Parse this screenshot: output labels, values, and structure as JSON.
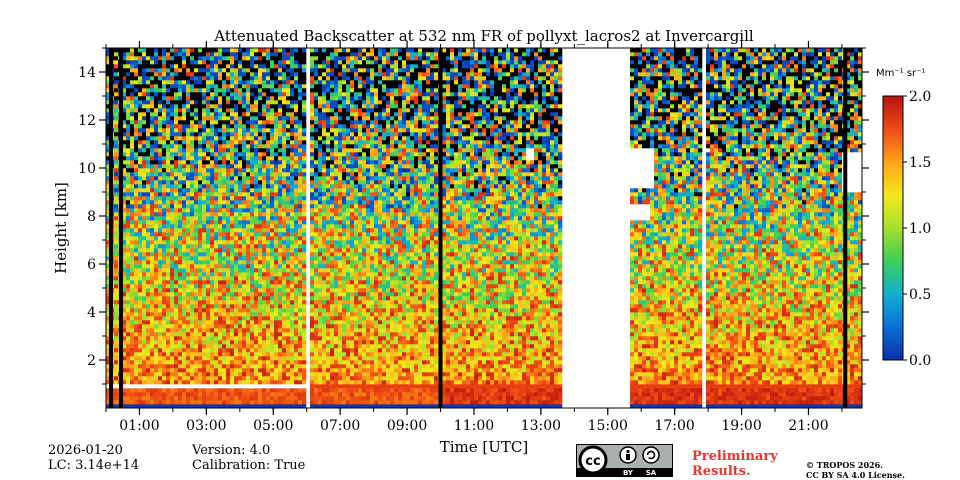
{
  "chart_data": {
    "type": "heatmap",
    "title": "Attenuated Backscatter at 532 nm FR of pollyxt_lacros2 at Invercargill",
    "xlabel": "Time [UTC]",
    "ylabel": "Height [km]",
    "x_range_hours": [
      0.0,
      22.6
    ],
    "y_range_km": [
      0.0,
      15.0
    ],
    "x_ticks": [
      {
        "hour": 1,
        "label": "01:00"
      },
      {
        "hour": 3,
        "label": "03:00"
      },
      {
        "hour": 5,
        "label": "05:00"
      },
      {
        "hour": 7,
        "label": "07:00"
      },
      {
        "hour": 9,
        "label": "09:00"
      },
      {
        "hour": 11,
        "label": "11:00"
      },
      {
        "hour": 13,
        "label": "13:00"
      },
      {
        "hour": 15,
        "label": "15:00"
      },
      {
        "hour": 17,
        "label": "17:00"
      },
      {
        "hour": 19,
        "label": "19:00"
      },
      {
        "hour": 21,
        "label": "21:00"
      }
    ],
    "y_ticks": [
      {
        "value": 2,
        "label": "2"
      },
      {
        "value": 4,
        "label": "4"
      },
      {
        "value": 6,
        "label": "6"
      },
      {
        "value": 8,
        "label": "8"
      },
      {
        "value": 10,
        "label": "10"
      },
      {
        "value": 12,
        "label": "12"
      },
      {
        "value": 14,
        "label": "14"
      }
    ],
    "colorbar": {
      "unit_label": "Mm⁻¹ sr⁻¹",
      "range": [
        0.0,
        2.0
      ],
      "ticks": [
        {
          "value": 0.0,
          "label": "0.0"
        },
        {
          "value": 0.5,
          "label": "0.5"
        },
        {
          "value": 1.0,
          "label": "1.0"
        },
        {
          "value": 1.5,
          "label": "1.5"
        },
        {
          "value": 2.0,
          "label": "2.0"
        }
      ],
      "colormap": [
        "#0a2fa8",
        "#0a6fd8",
        "#12b0d0",
        "#3ccf5a",
        "#a5e02c",
        "#f5e81a",
        "#ffa31a",
        "#f04a14",
        "#b8140d"
      ]
    },
    "data_gaps_hours": [
      [
        5.95,
        6.05
      ],
      [
        13.6,
        15.7
      ],
      [
        17.83,
        17.88
      ]
    ],
    "no_signal_lines_hours": [
      0.15,
      0.45,
      10.0,
      22.1
    ],
    "cloud_patches": [
      {
        "hours": [
          12.5,
          12.8
        ],
        "km": [
          10.4,
          10.8
        ]
      },
      {
        "hours": [
          15.7,
          16.4
        ],
        "km": [
          9.2,
          10.9
        ]
      },
      {
        "hours": [
          15.7,
          16.3
        ],
        "km": [
          7.9,
          8.5
        ]
      },
      {
        "hours": [
          17.8,
          18.0
        ],
        "km": [
          10.6,
          10.9
        ]
      },
      {
        "hours": [
          22.0,
          22.6
        ],
        "km": [
          9.0,
          10.6
        ]
      }
    ],
    "boundary_layer": {
      "top_km_first_part": 0.85,
      "top_km_later": 0.8
    }
  },
  "footer": {
    "date": "2026-01-20",
    "lc": "LC: 3.14e+14",
    "version": "Version: 4.0",
    "calibration": "Calibration: True",
    "preliminary_line1": "Preliminary",
    "preliminary_line2": "Results.",
    "copyright_line1": "© TROPOS 2026.",
    "copyright_line2": "CC BY SA 4.0 License.",
    "license_badge": {
      "by": "BY",
      "sa": "SA"
    }
  }
}
